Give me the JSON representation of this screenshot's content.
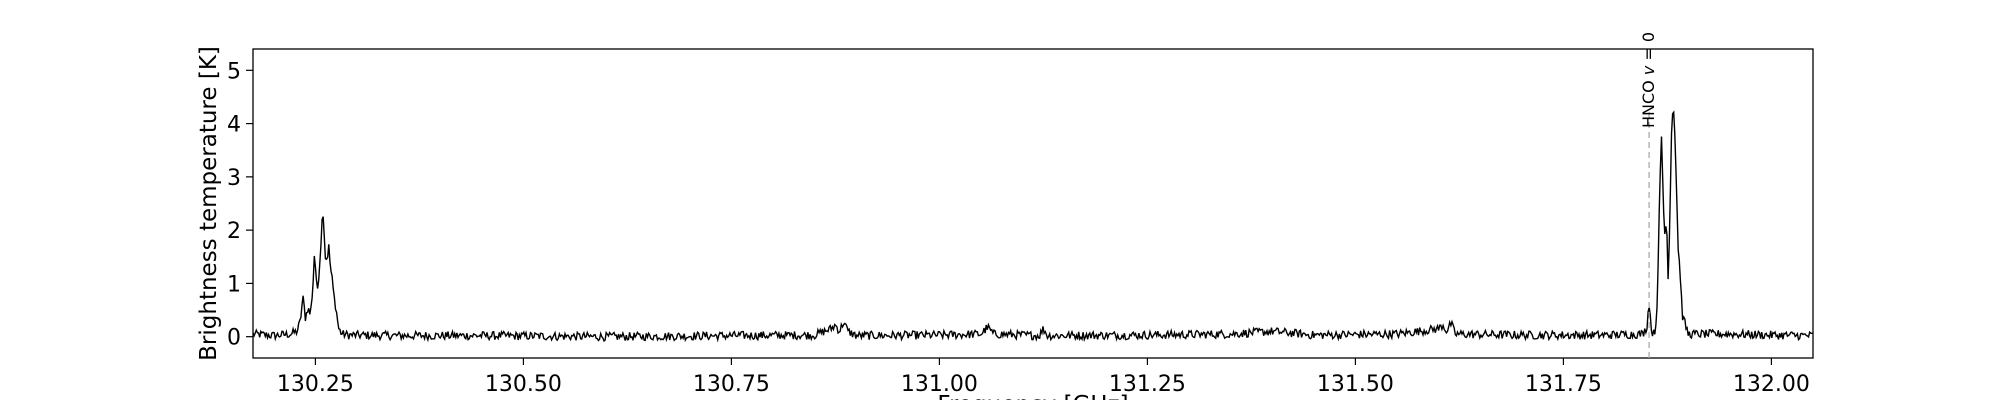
{
  "chart_data": {
    "type": "line",
    "title": "",
    "xlabel": "Frequency [GHz]",
    "ylabel": "Brightness temperature [K]",
    "xlim": [
      130.175,
      132.05
    ],
    "ylim": [
      -0.4,
      5.4
    ],
    "x_ticks": [
      130.25,
      130.5,
      130.75,
      131.0,
      131.25,
      131.5,
      131.75,
      132.0
    ],
    "x_tick_labels": [
      "130.25",
      "130.50",
      "130.75",
      "131.00",
      "131.25",
      "131.50",
      "131.75",
      "132.00"
    ],
    "y_ticks": [
      0,
      1,
      2,
      3,
      4,
      5
    ],
    "y_tick_labels": [
      "0",
      "1",
      "2",
      "3",
      "4",
      "5"
    ],
    "grid": false,
    "legend": "none",
    "series": [
      {
        "color": "#000000",
        "x": [
          130.175,
          130.2,
          130.22,
          130.228,
          130.232,
          130.235,
          130.238,
          130.241,
          130.244,
          130.247,
          130.249,
          130.251,
          130.253,
          130.256,
          130.259,
          130.262,
          130.264,
          130.266,
          130.268,
          130.27,
          130.272,
          130.275,
          130.278,
          130.282,
          130.29,
          130.35,
          130.45,
          130.6,
          130.75,
          130.85,
          130.87,
          130.875,
          130.88,
          130.885,
          130.89,
          130.9,
          131.0,
          131.05,
          131.058,
          131.065,
          131.12,
          131.125,
          131.13,
          131.25,
          131.35,
          131.4,
          131.45,
          131.55,
          131.6,
          131.605,
          131.61,
          131.615,
          131.62,
          131.7,
          131.8,
          131.845,
          131.85,
          131.853,
          131.856,
          131.859,
          131.862,
          131.864,
          131.866,
          131.868,
          131.87,
          131.872,
          131.874,
          131.876,
          131.878,
          131.88,
          131.882,
          131.884,
          131.886,
          131.888,
          131.89,
          131.893,
          131.9,
          131.95,
          132.0,
          132.05
        ],
        "y": [
          0.05,
          0.02,
          0.05,
          0.1,
          0.3,
          0.75,
          0.35,
          0.55,
          0.4,
          0.95,
          1.65,
          1.0,
          0.9,
          1.6,
          2.45,
          1.5,
          1.45,
          1.7,
          1.3,
          1.1,
          0.8,
          0.5,
          0.15,
          0.05,
          0.03,
          0.02,
          0.02,
          0.0,
          0.02,
          0.03,
          0.15,
          0.22,
          0.1,
          0.28,
          0.1,
          0.02,
          0.03,
          0.05,
          0.18,
          0.05,
          0.02,
          0.15,
          0.02,
          0.03,
          0.05,
          0.1,
          0.03,
          0.05,
          0.15,
          0.22,
          0.1,
          0.25,
          0.05,
          0.03,
          0.03,
          0.05,
          0.15,
          0.65,
          0.1,
          0.05,
          0.3,
          1.5,
          2.8,
          3.8,
          2.5,
          1.9,
          2.2,
          1.1,
          2.3,
          3.9,
          4.45,
          3.8,
          2.8,
          1.6,
          1.3,
          0.4,
          0.05,
          0.05,
          0.03,
          0.02
        ]
      }
    ],
    "annotations": [
      {
        "x": 131.853,
        "label_main": "HNCO ",
        "label_italic": "v",
        "label_tail": " = 0",
        "line_color": "#aaaaaa",
        "line_style": "dashed"
      }
    ]
  }
}
